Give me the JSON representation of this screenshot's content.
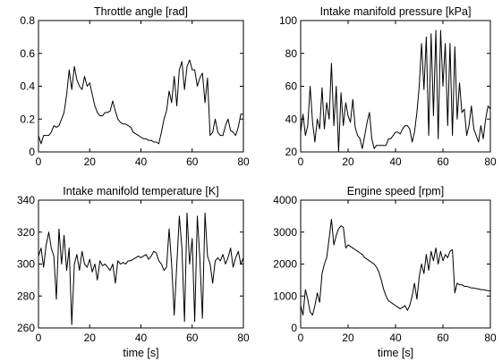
{
  "chart_data": [
    {
      "type": "line",
      "title": "Throttle angle [rad]",
      "xlabel": "",
      "ylabel": "",
      "xlim": [
        0,
        80
      ],
      "ylim": [
        0,
        0.8
      ],
      "xticks": [
        "0",
        "20",
        "40",
        "60",
        "80"
      ],
      "yticks": [
        "0",
        "0.2",
        "0.4",
        "0.6",
        "0.8"
      ],
      "grid": false,
      "series": [
        {
          "x": [
            0,
            1,
            2,
            3,
            4,
            5,
            6,
            7,
            8,
            9,
            10,
            11,
            12,
            13,
            14,
            15,
            16,
            17,
            18,
            19,
            20,
            21,
            22,
            23,
            24,
            25,
            26,
            27,
            28,
            29,
            30,
            31,
            32,
            33,
            34,
            35,
            36,
            37,
            38,
            39,
            40,
            41,
            42,
            43,
            44,
            45,
            46,
            47,
            48,
            49,
            50,
            51,
            52,
            53,
            54,
            55,
            56,
            57,
            58,
            59,
            60,
            61,
            62,
            63,
            64,
            65,
            66,
            67,
            68,
            69,
            70,
            71,
            72,
            73,
            74,
            75,
            76,
            77,
            78,
            79,
            80
          ],
          "y": [
            0.1,
            0.05,
            0.1,
            0.1,
            0.1,
            0.12,
            0.16,
            0.15,
            0.16,
            0.2,
            0.24,
            0.35,
            0.5,
            0.38,
            0.52,
            0.44,
            0.4,
            0.38,
            0.46,
            0.4,
            0.42,
            0.35,
            0.28,
            0.24,
            0.22,
            0.22,
            0.24,
            0.24,
            0.25,
            0.31,
            0.25,
            0.2,
            0.18,
            0.17,
            0.17,
            0.16,
            0.15,
            0.12,
            0.11,
            0.1,
            0.09,
            0.08,
            0.08,
            0.07,
            0.07,
            0.06,
            0.06,
            0.05,
            0.12,
            0.2,
            0.25,
            0.37,
            0.3,
            0.46,
            0.28,
            0.5,
            0.55,
            0.38,
            0.52,
            0.56,
            0.5,
            0.5,
            0.4,
            0.45,
            0.48,
            0.3,
            0.45,
            0.1,
            0.12,
            0.2,
            0.12,
            0.1,
            0.1,
            0.16,
            0.2,
            0.13,
            0.12,
            0.1,
            0.15,
            0.23,
            0.23
          ]
        }
      ]
    },
    {
      "type": "line",
      "title": "Intake manifold pressure [kPa]",
      "xlabel": "",
      "ylabel": "",
      "xlim": [
        0,
        80
      ],
      "ylim": [
        20,
        100
      ],
      "xticks": [
        "0",
        "20",
        "40",
        "60",
        "80"
      ],
      "yticks": [
        "20",
        "40",
        "60",
        "80",
        "100"
      ],
      "grid": false,
      "series": [
        {
          "x": [
            0,
            1,
            2,
            3,
            4,
            5,
            6,
            7,
            8,
            9,
            10,
            11,
            12,
            13,
            14,
            15,
            16,
            17,
            18,
            19,
            20,
            21,
            22,
            23,
            24,
            25,
            26,
            27,
            28,
            29,
            30,
            31,
            32,
            33,
            34,
            35,
            36,
            37,
            38,
            39,
            40,
            41,
            42,
            43,
            44,
            45,
            46,
            47,
            48,
            49,
            50,
            51,
            52,
            53,
            54,
            55,
            56,
            57,
            58,
            59,
            60,
            61,
            62,
            63,
            64,
            65,
            66,
            67,
            68,
            69,
            70,
            71,
            72,
            73,
            74,
            75,
            76,
            77,
            78,
            79,
            80
          ],
          "y": [
            32,
            43,
            30,
            36,
            60,
            38,
            26,
            40,
            34,
            59,
            34,
            50,
            40,
            74,
            36,
            60,
            20,
            56,
            36,
            50,
            42,
            38,
            52,
            35,
            30,
            28,
            22,
            30,
            38,
            44,
            28,
            22,
            24,
            24,
            24,
            24,
            24,
            28,
            28,
            30,
            32,
            32,
            31,
            34,
            36,
            36,
            34,
            26,
            32,
            44,
            60,
            86,
            58,
            90,
            30,
            92,
            42,
            94,
            28,
            94,
            60,
            86,
            36,
            86,
            30,
            84,
            40,
            62,
            44,
            46,
            30,
            36,
            48,
            34,
            30,
            26,
            36,
            28,
            40,
            48,
            46
          ]
        }
      ]
    },
    {
      "type": "line",
      "title": "Intake manifold temperature [K]",
      "xlabel": "time [s]",
      "ylabel": "",
      "xlim": [
        0,
        80
      ],
      "ylim": [
        260,
        340
      ],
      "xticks": [
        "0",
        "20",
        "40",
        "60",
        "80"
      ],
      "yticks": [
        "260",
        "280",
        "300",
        "320",
        "340"
      ],
      "grid": false,
      "series": [
        {
          "x": [
            0,
            1,
            2,
            3,
            4,
            5,
            6,
            7,
            8,
            9,
            10,
            11,
            12,
            13,
            14,
            15,
            16,
            17,
            18,
            19,
            20,
            21,
            22,
            23,
            24,
            25,
            26,
            27,
            28,
            29,
            30,
            31,
            32,
            33,
            34,
            35,
            36,
            37,
            38,
            39,
            40,
            41,
            42,
            43,
            44,
            45,
            46,
            47,
            48,
            49,
            50,
            51,
            52,
            53,
            54,
            55,
            56,
            57,
            58,
            59,
            60,
            61,
            62,
            63,
            64,
            65,
            66,
            67,
            68,
            69,
            70,
            71,
            72,
            73,
            74,
            75,
            76,
            77,
            78,
            79,
            80
          ],
          "y": [
            305,
            310,
            298,
            312,
            320,
            310,
            305,
            278,
            322,
            300,
            318,
            296,
            310,
            262,
            300,
            306,
            296,
            308,
            300,
            298,
            303,
            295,
            300,
            290,
            302,
            299,
            300,
            298,
            296,
            300,
            288,
            302,
            300,
            301,
            300,
            302,
            302,
            303,
            304,
            305,
            304,
            305,
            306,
            303,
            305,
            308,
            307,
            302,
            300,
            296,
            298,
            322,
            300,
            268,
            300,
            330,
            310,
            264,
            332,
            300,
            316,
            264,
            330,
            304,
            266,
            332,
            305,
            300,
            288,
            302,
            304,
            302,
            306,
            300,
            304,
            310,
            298,
            304,
            308,
            300,
            304
          ]
        }
      ]
    },
    {
      "type": "line",
      "title": "Engine speed [rpm]",
      "xlabel": "time [s]",
      "ylabel": "",
      "xlim": [
        0,
        80
      ],
      "ylim": [
        0,
        4000
      ],
      "xticks": [
        "0",
        "20",
        "40",
        "60",
        "80"
      ],
      "yticks": [
        "0",
        "1000",
        "2000",
        "3000",
        "4000"
      ],
      "grid": false,
      "series": [
        {
          "x": [
            0,
            1,
            2,
            3,
            4,
            5,
            6,
            7,
            8,
            9,
            10,
            11,
            12,
            13,
            14,
            15,
            16,
            17,
            18,
            19,
            20,
            21,
            22,
            23,
            24,
            25,
            26,
            27,
            28,
            29,
            30,
            31,
            32,
            33,
            34,
            35,
            36,
            37,
            38,
            39,
            40,
            41,
            42,
            43,
            44,
            45,
            46,
            47,
            48,
            49,
            50,
            51,
            52,
            53,
            54,
            55,
            56,
            57,
            58,
            59,
            60,
            61,
            62,
            63,
            64,
            65,
            66,
            67,
            68,
            69,
            70,
            71,
            72,
            73,
            74,
            75,
            76,
            77,
            78,
            79,
            80
          ],
          "y": [
            700,
            400,
            1200,
            900,
            500,
            400,
            700,
            1100,
            800,
            1700,
            2000,
            2200,
            2800,
            3400,
            2600,
            2900,
            3100,
            3200,
            3150,
            2500,
            2600,
            2550,
            2500,
            2450,
            2400,
            2350,
            2300,
            2200,
            2150,
            2100,
            2050,
            2000,
            1900,
            1750,
            1500,
            1200,
            1000,
            850,
            800,
            750,
            700,
            650,
            600,
            650,
            700,
            550,
            700,
            1000,
            1400,
            900,
            1600,
            2000,
            1700,
            2300,
            1800,
            2400,
            2100,
            2500,
            2000,
            2400,
            2100,
            2300,
            2200,
            2400,
            2450,
            1100,
            1400,
            1350,
            1350,
            1300,
            1300,
            1280,
            1250,
            1250,
            1230,
            1220,
            1200,
            1200,
            1180,
            1170,
            1150
          ]
        }
      ]
    }
  ]
}
